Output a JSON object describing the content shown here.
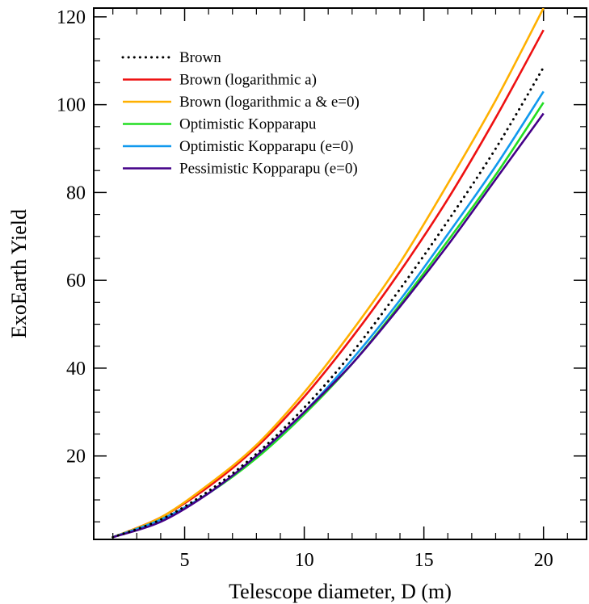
{
  "chart_data": {
    "type": "line",
    "title": "",
    "xlabel": "Telescope diameter, D (m)",
    "ylabel": "ExoEarth Yield",
    "xlim": [
      1.2,
      21.8
    ],
    "ylim": [
      1,
      122
    ],
    "xticks": [
      5,
      10,
      15,
      20
    ],
    "yticks": [
      20,
      40,
      60,
      80,
      100,
      120
    ],
    "legend_position": "top-left",
    "grid": false,
    "x": [
      2,
      4,
      6,
      8,
      10,
      12,
      14,
      16,
      18,
      20
    ],
    "series": [
      {
        "name": "Brown",
        "color": "#000000",
        "style": "dotted",
        "values": [
          1.5,
          5.5,
          12,
          20.5,
          31,
          43.5,
          58,
          73.5,
          90,
          108.5
        ]
      },
      {
        "name": "Brown (logarithmic a)",
        "color": "#ee1111",
        "style": "solid",
        "values": [
          1.5,
          6,
          13,
          22,
          33.5,
          47,
          62,
          78.5,
          97,
          117
        ]
      },
      {
        "name": "Brown (logarithmic a & e=0)",
        "color": "#ffb000",
        "style": "solid",
        "values": [
          1.5,
          6,
          13.5,
          22.5,
          34.5,
          48.5,
          64,
          82,
          101,
          122
        ]
      },
      {
        "name": "Optimistic Kopparapu",
        "color": "#22dd22",
        "style": "solid",
        "values": [
          1.5,
          5.5,
          11.5,
          19.5,
          29.5,
          41,
          54.5,
          69,
          84,
          100.5
        ]
      },
      {
        "name": "Optimistic Kopparapu (e=0)",
        "color": "#1199ee",
        "style": "solid",
        "values": [
          1.5,
          5.5,
          11.5,
          20,
          30,
          42,
          55.5,
          70.5,
          86,
          103
        ]
      },
      {
        "name": "Pessimistic Kopparapu (e=0)",
        "color": "#440088",
        "style": "solid",
        "values": [
          1.5,
          5,
          11.5,
          20,
          30,
          41,
          54,
          68,
          83,
          98
        ]
      }
    ]
  }
}
